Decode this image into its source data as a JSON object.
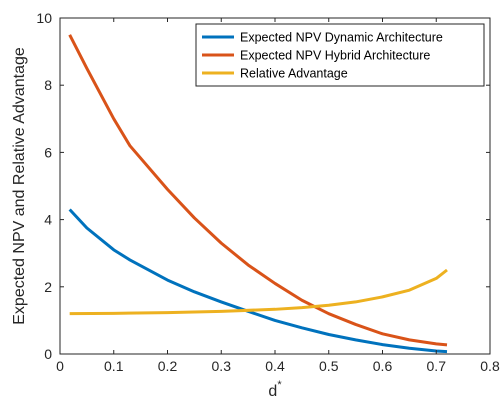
{
  "chart_data": {
    "type": "line",
    "title": "",
    "xlabel": "d",
    "xlabel_superscript": "*",
    "ylabel": "Expected NPV and Relative Advantage",
    "xlim": [
      0,
      0.8
    ],
    "ylim": [
      0,
      10
    ],
    "xticks": [
      "0",
      "0.1",
      "0.2",
      "0.3",
      "0.4",
      "0.5",
      "0.6",
      "0.7",
      "0.8"
    ],
    "yticks": [
      "0",
      "2",
      "4",
      "6",
      "8",
      "10"
    ],
    "grid": false,
    "legend_position": "top-right",
    "series": [
      {
        "name": "Expected NPV Dynamic Architecture",
        "color": "#0072BD",
        "x": [
          0.018,
          0.05,
          0.1,
          0.13,
          0.2,
          0.25,
          0.3,
          0.35,
          0.4,
          0.45,
          0.5,
          0.55,
          0.6,
          0.65,
          0.7,
          0.72
        ],
        "y": [
          4.3,
          3.75,
          3.1,
          2.8,
          2.2,
          1.85,
          1.55,
          1.27,
          1.0,
          0.78,
          0.58,
          0.42,
          0.28,
          0.17,
          0.09,
          0.07
        ]
      },
      {
        "name": "Expected NPV Hybrid Architecture",
        "color": "#D95319",
        "x": [
          0.018,
          0.05,
          0.1,
          0.13,
          0.2,
          0.25,
          0.3,
          0.35,
          0.4,
          0.45,
          0.5,
          0.55,
          0.6,
          0.65,
          0.7,
          0.72
        ],
        "y": [
          9.5,
          8.5,
          7.0,
          6.2,
          4.9,
          4.05,
          3.3,
          2.65,
          2.1,
          1.6,
          1.2,
          0.88,
          0.6,
          0.42,
          0.3,
          0.27
        ]
      },
      {
        "name": "Relative Advantage",
        "color": "#EDB120",
        "x": [
          0.018,
          0.1,
          0.2,
          0.3,
          0.4,
          0.45,
          0.5,
          0.55,
          0.6,
          0.65,
          0.7,
          0.72
        ],
        "y": [
          1.2,
          1.21,
          1.23,
          1.27,
          1.33,
          1.38,
          1.45,
          1.55,
          1.7,
          1.9,
          2.25,
          2.5
        ]
      }
    ]
  }
}
